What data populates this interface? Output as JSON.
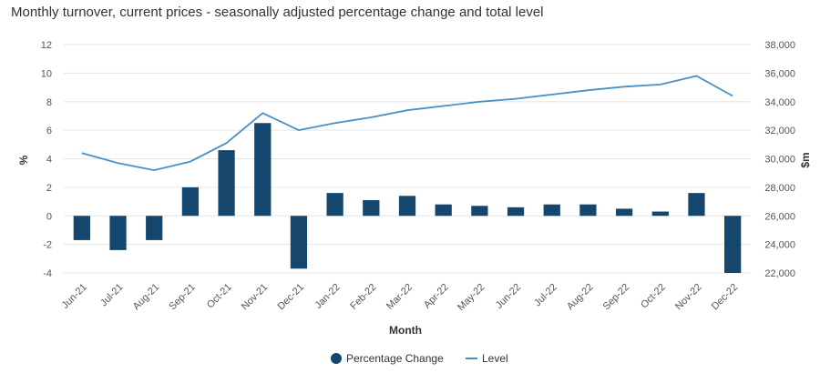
{
  "chart_data": {
    "type": "bar",
    "title": "Monthly turnover, current prices - seasonally adjusted percentage change and total level",
    "xlabel": "Month",
    "ylabel": "%",
    "ylabel_right": "$m",
    "categories": [
      "Jun-21",
      "Jul-21",
      "Aug-21",
      "Sep-21",
      "Oct-21",
      "Nov-21",
      "Dec-21",
      "Jan-22",
      "Feb-22",
      "Mar-22",
      "Apr-22",
      "May-22",
      "Jun-22",
      "Jul-22",
      "Aug-22",
      "Sep-22",
      "Oct-22",
      "Nov-22",
      "Dec-22"
    ],
    "ylim": [
      -4,
      12
    ],
    "y_ticks": [
      -4,
      -2,
      0,
      2,
      4,
      6,
      8,
      10,
      12
    ],
    "y2lim": [
      22000,
      38000
    ],
    "y2_ticks": [
      22000,
      24000,
      26000,
      28000,
      30000,
      32000,
      34000,
      36000,
      38000
    ],
    "y2_tick_labels": [
      "22,000",
      "24,000",
      "26,000",
      "28,000",
      "30,000",
      "32,000",
      "34,000",
      "36,000",
      "38,000"
    ],
    "grid": true,
    "legend_position": "bottom",
    "series": [
      {
        "name": "Percentage Change",
        "type": "bar",
        "axis": "left",
        "color": "#14466e",
        "values": [
          -1.7,
          -2.4,
          -1.7,
          2.0,
          4.6,
          6.5,
          -3.7,
          1.6,
          1.1,
          1.4,
          0.8,
          0.7,
          0.6,
          0.8,
          0.8,
          0.5,
          0.3,
          1.6,
          -4.0
        ]
      },
      {
        "name": "Level",
        "type": "line",
        "axis": "right",
        "color": "#4a90c4",
        "values": [
          30400,
          29700,
          29200,
          29800,
          31100,
          33200,
          32000,
          32500,
          32900,
          33400,
          33700,
          34000,
          34200,
          34500,
          34800,
          35050,
          35200,
          35800,
          34400
        ]
      }
    ]
  }
}
